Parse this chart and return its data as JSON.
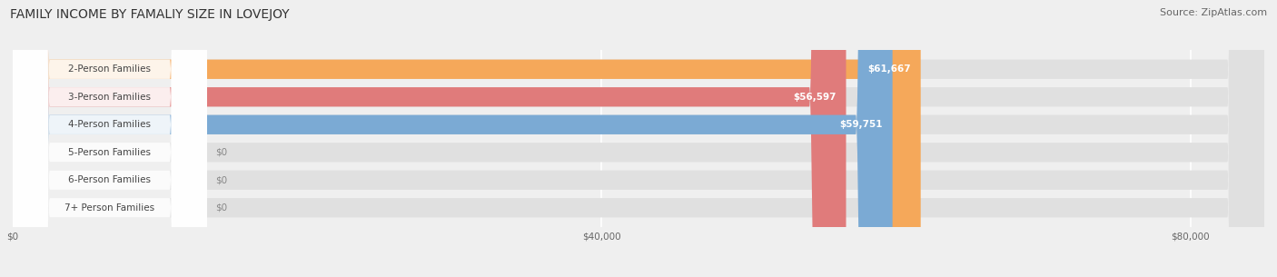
{
  "title": "FAMILY INCOME BY FAMALIY SIZE IN LOVEJOY",
  "source": "Source: ZipAtlas.com",
  "categories": [
    "2-Person Families",
    "3-Person Families",
    "4-Person Families",
    "5-Person Families",
    "6-Person Families",
    "7+ Person Families"
  ],
  "values": [
    61667,
    56597,
    59751,
    0,
    0,
    0
  ],
  "bar_colors": [
    "#F5A85A",
    "#E07B7B",
    "#7BAAD4",
    "#C8A8D8",
    "#6ABFB8",
    "#A8B8D8"
  ],
  "value_labels": [
    "$61,667",
    "$56,597",
    "$59,751",
    "$0",
    "$0",
    "$0"
  ],
  "xlim": [
    0,
    85000
  ],
  "xticks": [
    0,
    40000,
    80000
  ],
  "xtick_labels": [
    "$0",
    "$40,000",
    "$80,000"
  ],
  "background_color": "#efefef",
  "bar_bg_color": "#e0e0e0",
  "title_fontsize": 10,
  "source_fontsize": 8,
  "label_fontsize": 7.5,
  "value_fontsize": 7.5,
  "bar_height": 0.7
}
